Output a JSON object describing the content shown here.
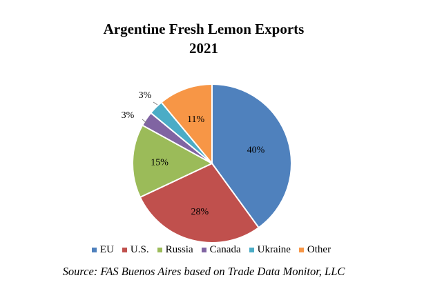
{
  "chart_data": {
    "type": "pie",
    "title_lines": [
      "Argentine Fresh Lemon Exports",
      "2021"
    ],
    "slices": [
      {
        "label": "EU",
        "value": 40,
        "data_label": "40%",
        "color": "#4f81bd"
      },
      {
        "label": "U.S.",
        "value": 28,
        "data_label": "28%",
        "color": "#c0504d"
      },
      {
        "label": "Russia",
        "value": 15,
        "data_label": "15%",
        "color": "#9bbb59"
      },
      {
        "label": "Canada",
        "value": 3,
        "data_label": "3%",
        "color": "#8064a2"
      },
      {
        "label": "Ukraine",
        "value": 3,
        "data_label": "3%",
        "color": "#4bacc6"
      },
      {
        "label": "Other",
        "value": 11,
        "data_label": "11%",
        "color": "#f79646"
      }
    ],
    "legend_position": "bottom",
    "source": "Source: FAS Buenos Aires based on Trade Data Monitor, LLC"
  }
}
